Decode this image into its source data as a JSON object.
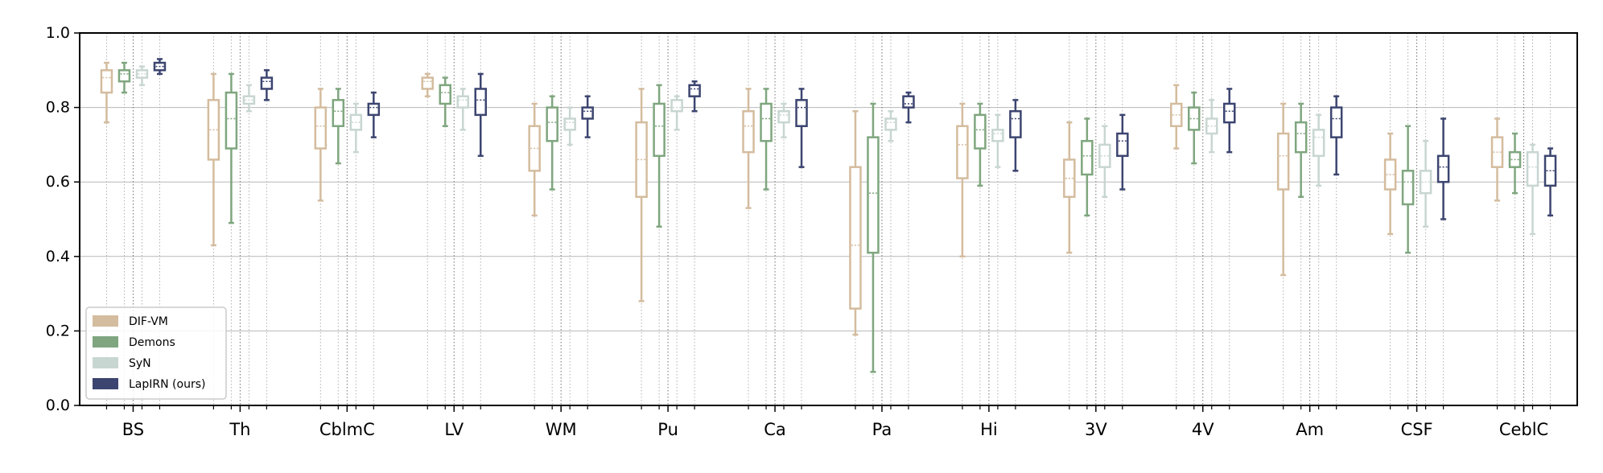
{
  "chart_data": {
    "type": "box",
    "title": "",
    "xlabel": "",
    "ylabel": "",
    "ylim": [
      0,
      1.0
    ],
    "yticks": [
      "0.0",
      "0.2",
      "0.4",
      "0.6",
      "0.8",
      "1.0"
    ],
    "categories": [
      "BS",
      "Th",
      "CblmC",
      "LV",
      "WM",
      "Pu",
      "Ca",
      "Pa",
      "Hi",
      "3V",
      "4V",
      "Am",
      "CSF",
      "CeblC"
    ],
    "grid": "horizontal",
    "legend_position": "lower-left",
    "series": [
      {
        "name": "DIF-VM",
        "color": "#d4bc9e",
        "boxes": [
          {
            "whislo": 0.76,
            "q1": 0.84,
            "med": 0.88,
            "q3": 0.9,
            "whishi": 0.92
          },
          {
            "whislo": 0.43,
            "q1": 0.66,
            "med": 0.74,
            "q3": 0.82,
            "whishi": 0.89
          },
          {
            "whislo": 0.55,
            "q1": 0.69,
            "med": 0.75,
            "q3": 0.8,
            "whishi": 0.85
          },
          {
            "whislo": 0.83,
            "q1": 0.85,
            "med": 0.87,
            "q3": 0.88,
            "whishi": 0.89
          },
          {
            "whislo": 0.51,
            "q1": 0.63,
            "med": 0.69,
            "q3": 0.75,
            "whishi": 0.81
          },
          {
            "whislo": 0.28,
            "q1": 0.56,
            "med": 0.66,
            "q3": 0.76,
            "whishi": 0.85
          },
          {
            "whislo": 0.53,
            "q1": 0.68,
            "med": 0.75,
            "q3": 0.79,
            "whishi": 0.85
          },
          {
            "whislo": 0.19,
            "q1": 0.26,
            "med": 0.43,
            "q3": 0.64,
            "whishi": 0.79
          },
          {
            "whislo": 0.4,
            "q1": 0.61,
            "med": 0.7,
            "q3": 0.75,
            "whishi": 0.81
          },
          {
            "whislo": 0.41,
            "q1": 0.56,
            "med": 0.61,
            "q3": 0.66,
            "whishi": 0.76
          },
          {
            "whislo": 0.69,
            "q1": 0.75,
            "med": 0.78,
            "q3": 0.81,
            "whishi": 0.86
          },
          {
            "whislo": 0.35,
            "q1": 0.58,
            "med": 0.67,
            "q3": 0.73,
            "whishi": 0.81
          },
          {
            "whislo": 0.46,
            "q1": 0.58,
            "med": 0.62,
            "q3": 0.66,
            "whishi": 0.73
          },
          {
            "whislo": 0.55,
            "q1": 0.64,
            "med": 0.68,
            "q3": 0.72,
            "whishi": 0.77
          }
        ]
      },
      {
        "name": "Demons",
        "color": "#7fa67f",
        "boxes": [
          {
            "whislo": 0.84,
            "q1": 0.87,
            "med": 0.89,
            "q3": 0.9,
            "whishi": 0.92
          },
          {
            "whislo": 0.49,
            "q1": 0.69,
            "med": 0.77,
            "q3": 0.84,
            "whishi": 0.89
          },
          {
            "whislo": 0.65,
            "q1": 0.75,
            "med": 0.79,
            "q3": 0.82,
            "whishi": 0.85
          },
          {
            "whislo": 0.75,
            "q1": 0.81,
            "med": 0.84,
            "q3": 0.86,
            "whishi": 0.88
          },
          {
            "whislo": 0.58,
            "q1": 0.71,
            "med": 0.76,
            "q3": 0.8,
            "whishi": 0.83
          },
          {
            "whislo": 0.48,
            "q1": 0.67,
            "med": 0.75,
            "q3": 0.81,
            "whishi": 0.86
          },
          {
            "whislo": 0.58,
            "q1": 0.71,
            "med": 0.77,
            "q3": 0.81,
            "whishi": 0.85
          },
          {
            "whislo": 0.09,
            "q1": 0.41,
            "med": 0.57,
            "q3": 0.72,
            "whishi": 0.81
          },
          {
            "whislo": 0.59,
            "q1": 0.69,
            "med": 0.74,
            "q3": 0.78,
            "whishi": 0.81
          },
          {
            "whislo": 0.51,
            "q1": 0.62,
            "med": 0.67,
            "q3": 0.71,
            "whishi": 0.77
          },
          {
            "whislo": 0.65,
            "q1": 0.74,
            "med": 0.77,
            "q3": 0.8,
            "whishi": 0.84
          },
          {
            "whislo": 0.56,
            "q1": 0.68,
            "med": 0.73,
            "q3": 0.76,
            "whishi": 0.81
          },
          {
            "whislo": 0.41,
            "q1": 0.54,
            "med": 0.6,
            "q3": 0.63,
            "whishi": 0.75
          },
          {
            "whislo": 0.57,
            "q1": 0.64,
            "med": 0.66,
            "q3": 0.68,
            "whishi": 0.73
          }
        ]
      },
      {
        "name": "SyN",
        "color": "#c8d6d2",
        "boxes": [
          {
            "whislo": 0.86,
            "q1": 0.88,
            "med": 0.89,
            "q3": 0.9,
            "whishi": 0.91
          },
          {
            "whislo": 0.79,
            "q1": 0.81,
            "med": 0.82,
            "q3": 0.83,
            "whishi": 0.86
          },
          {
            "whislo": 0.68,
            "q1": 0.74,
            "med": 0.76,
            "q3": 0.78,
            "whishi": 0.81
          },
          {
            "whislo": 0.74,
            "q1": 0.8,
            "med": 0.82,
            "q3": 0.83,
            "whishi": 0.85
          },
          {
            "whislo": 0.7,
            "q1": 0.74,
            "med": 0.76,
            "q3": 0.77,
            "whishi": 0.8
          },
          {
            "whislo": 0.74,
            "q1": 0.79,
            "med": 0.8,
            "q3": 0.82,
            "whishi": 0.83
          },
          {
            "whislo": 0.72,
            "q1": 0.76,
            "med": 0.78,
            "q3": 0.79,
            "whishi": 0.81
          },
          {
            "whislo": 0.71,
            "q1": 0.74,
            "med": 0.76,
            "q3": 0.77,
            "whishi": 0.79
          },
          {
            "whislo": 0.64,
            "q1": 0.71,
            "med": 0.73,
            "q3": 0.74,
            "whishi": 0.78
          },
          {
            "whislo": 0.56,
            "q1": 0.64,
            "med": 0.67,
            "q3": 0.7,
            "whishi": 0.75
          },
          {
            "whislo": 0.68,
            "q1": 0.73,
            "med": 0.75,
            "q3": 0.77,
            "whishi": 0.82
          },
          {
            "whislo": 0.59,
            "q1": 0.67,
            "med": 0.72,
            "q3": 0.74,
            "whishi": 0.78
          },
          {
            "whislo": 0.48,
            "q1": 0.57,
            "med": 0.6,
            "q3": 0.63,
            "whishi": 0.71
          },
          {
            "whislo": 0.46,
            "q1": 0.59,
            "med": 0.64,
            "q3": 0.68,
            "whishi": 0.7
          }
        ]
      },
      {
        "name": "LapIRN (ours)",
        "color": "#3c4570",
        "boxes": [
          {
            "whislo": 0.89,
            "q1": 0.9,
            "med": 0.91,
            "q3": 0.92,
            "whishi": 0.93
          },
          {
            "whislo": 0.82,
            "q1": 0.85,
            "med": 0.87,
            "q3": 0.88,
            "whishi": 0.9
          },
          {
            "whislo": 0.72,
            "q1": 0.78,
            "med": 0.8,
            "q3": 0.81,
            "whishi": 0.84
          },
          {
            "whislo": 0.67,
            "q1": 0.78,
            "med": 0.82,
            "q3": 0.85,
            "whishi": 0.89
          },
          {
            "whislo": 0.72,
            "q1": 0.77,
            "med": 0.79,
            "q3": 0.8,
            "whishi": 0.83
          },
          {
            "whislo": 0.79,
            "q1": 0.83,
            "med": 0.85,
            "q3": 0.86,
            "whishi": 0.87
          },
          {
            "whislo": 0.64,
            "q1": 0.75,
            "med": 0.8,
            "q3": 0.82,
            "whishi": 0.85
          },
          {
            "whislo": 0.76,
            "q1": 0.8,
            "med": 0.81,
            "q3": 0.83,
            "whishi": 0.84
          },
          {
            "whislo": 0.63,
            "q1": 0.72,
            "med": 0.77,
            "q3": 0.79,
            "whishi": 0.82
          },
          {
            "whislo": 0.58,
            "q1": 0.67,
            "med": 0.71,
            "q3": 0.73,
            "whishi": 0.78
          },
          {
            "whislo": 0.68,
            "q1": 0.76,
            "med": 0.79,
            "q3": 0.81,
            "whishi": 0.85
          },
          {
            "whislo": 0.62,
            "q1": 0.72,
            "med": 0.77,
            "q3": 0.8,
            "whishi": 0.83
          },
          {
            "whislo": 0.5,
            "q1": 0.6,
            "med": 0.64,
            "q3": 0.67,
            "whishi": 0.77
          },
          {
            "whislo": 0.51,
            "q1": 0.59,
            "med": 0.63,
            "q3": 0.67,
            "whishi": 0.69
          }
        ]
      }
    ]
  }
}
